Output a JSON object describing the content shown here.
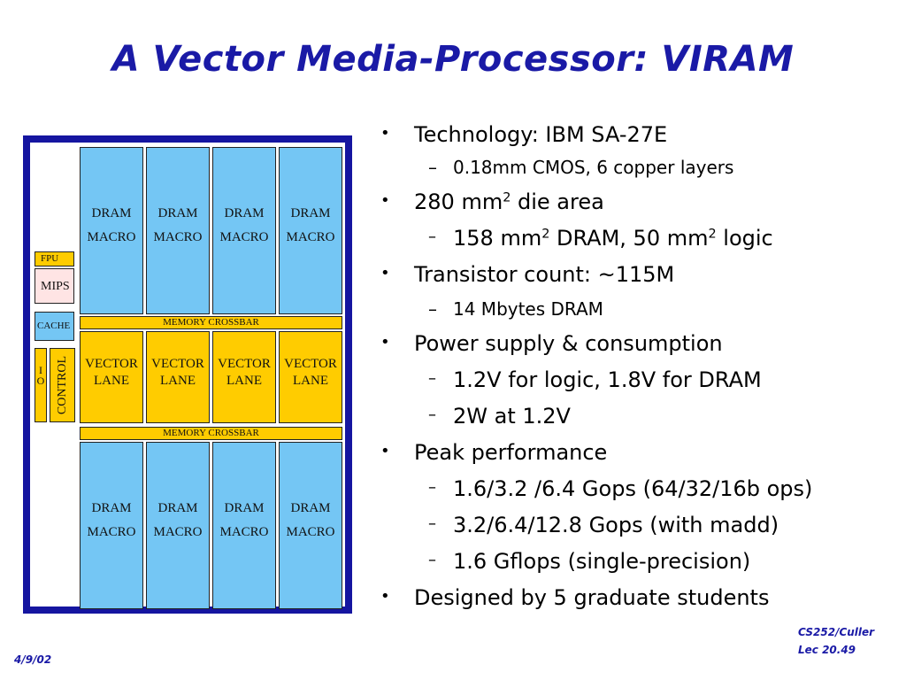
{
  "title": "A Vector Media-Processor: VIRAM",
  "diagram": {
    "dram_line1": "DRAM",
    "dram_line2": "MACRO",
    "lane_line1": "VECTOR",
    "lane_line2": "LANE",
    "crossbar": "MEMORY CROSSBAR",
    "fpu": "FPU",
    "mips": "MIPS",
    "cache": "CACHE",
    "io_top": "I",
    "io_bottom": "O",
    "control": "CONTROL",
    "colors": {
      "dram": "#74c6f4",
      "lane": "#ffcc00",
      "border": "#1515a0",
      "mips": "#ffe4e4"
    }
  },
  "bullets": [
    {
      "level": 1,
      "marker": "•",
      "text": "Technology: IBM SA-27E"
    },
    {
      "level": 2,
      "marker": "–",
      "text": "0.18mm CMOS, 6 copper layers"
    },
    {
      "level": 1,
      "marker": "•",
      "parts": [
        " 280 mm",
        "2",
        " die area"
      ]
    },
    {
      "level": 2,
      "marker": "–",
      "parts": [
        "158 mm",
        "2",
        " DRAM, 50 mm",
        "2",
        " logic"
      ]
    },
    {
      "level": 1,
      "marker": "•",
      "text": "Transistor count: ~115M"
    },
    {
      "level": 2,
      "marker": "–",
      "text": "14 Mbytes DRAM"
    },
    {
      "level": 1,
      "marker": "•",
      "text": "Power supply & consumption"
    },
    {
      "level": 2,
      "marker": "–",
      "text": "1.2V for logic, 1.8V for DRAM"
    },
    {
      "level": 2,
      "marker": "–",
      "text": "2W at 1.2V"
    },
    {
      "level": 1,
      "marker": "•",
      "text": "Peak performance"
    },
    {
      "level": 2,
      "marker": "–",
      "text": "1.6/3.2 /6.4 Gops  (64/32/16b ops)"
    },
    {
      "level": 2,
      "marker": "–",
      "text": "3.2/6.4/12.8 Gops  (with madd)"
    },
    {
      "level": 2,
      "marker": "–",
      "text": "1.6 Gflops (single-precision)"
    },
    {
      "level": 1,
      "marker": "•",
      "text": "Designed by 5 graduate students"
    }
  ],
  "footer": {
    "course": "CS252/Culler",
    "lecture": "Lec 20.49",
    "date": "4/9/02"
  }
}
